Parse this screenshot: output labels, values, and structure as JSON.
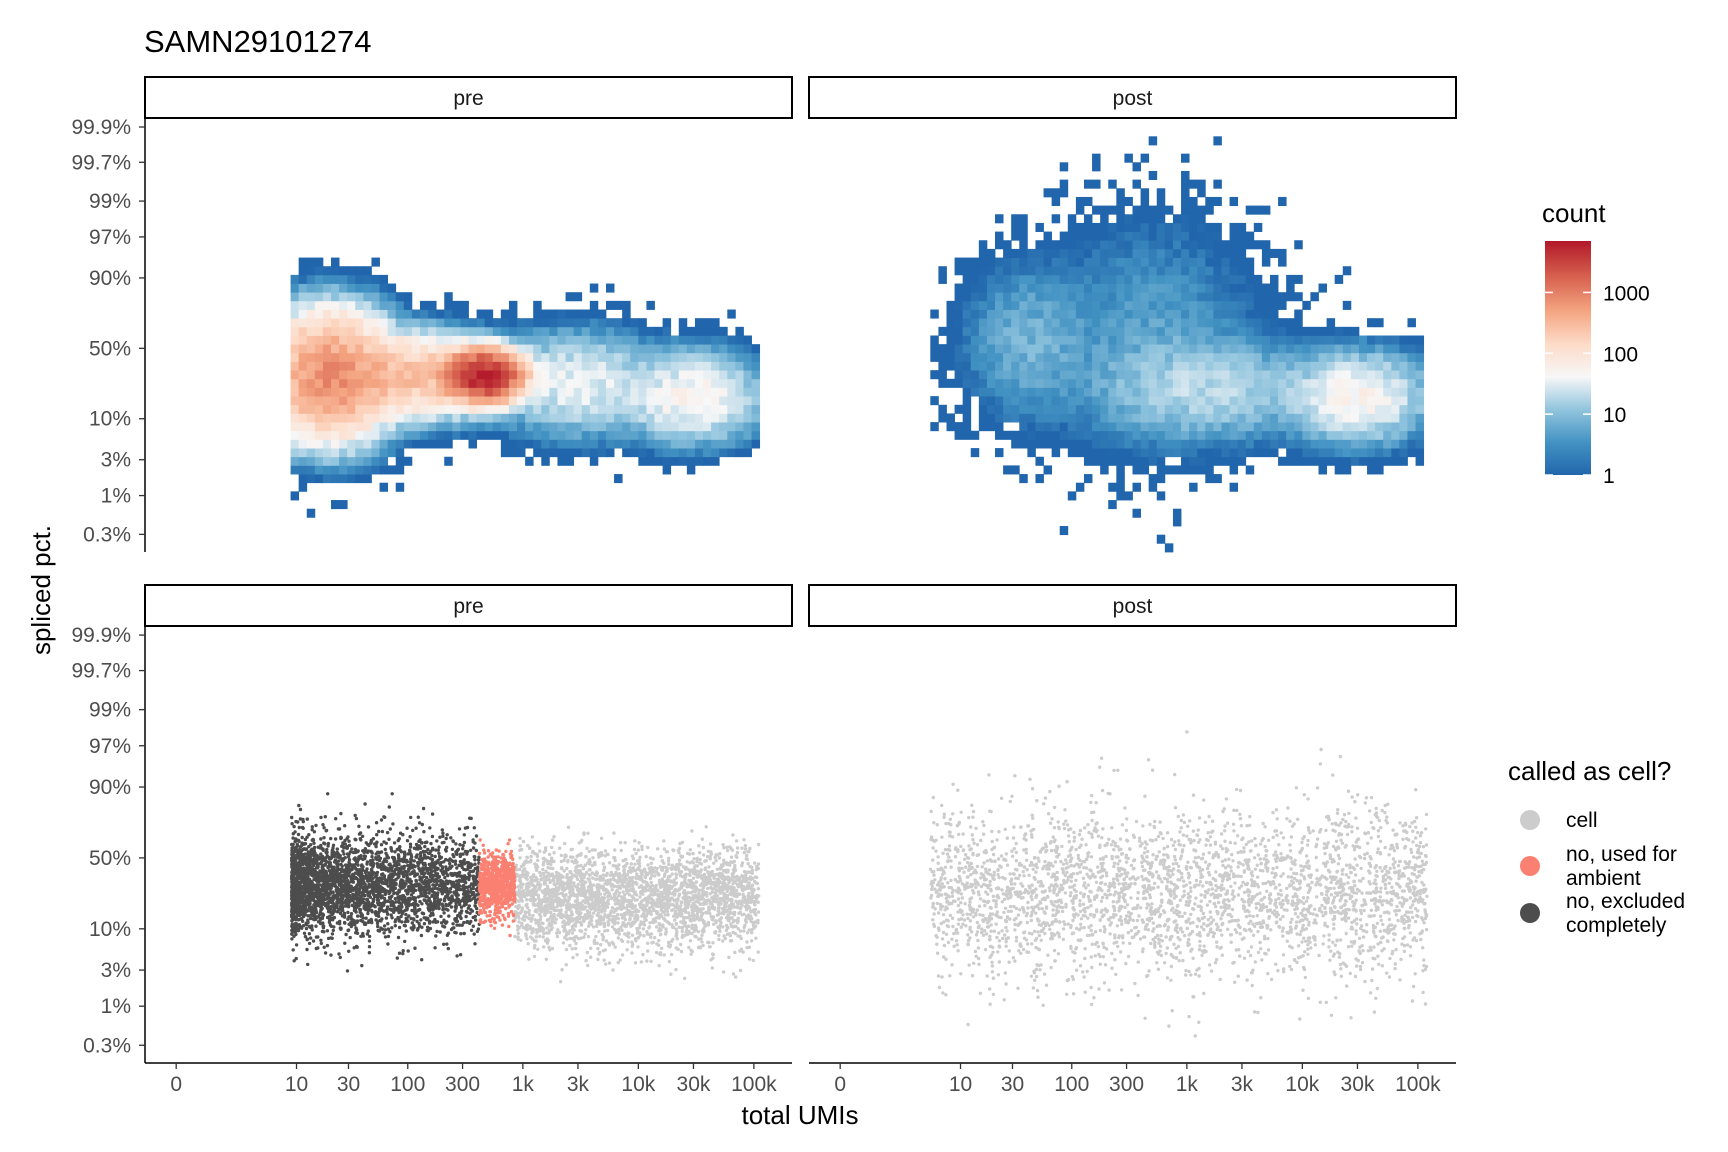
{
  "title": "SAMN29101274",
  "chart_data": [
    {
      "type": "heatmap",
      "panel_row": "top",
      "facets": [
        "pre",
        "post"
      ],
      "xlabel": "total UMIs",
      "ylabel": "spliced pct.",
      "x_scale": "log1p",
      "y_scale": "logit",
      "x_ticks": [
        0,
        10,
        30,
        100,
        300,
        1000,
        3000,
        10000,
        30000,
        100000
      ],
      "x_tick_labels": [
        "0",
        "10",
        "30",
        "100",
        "300",
        "1k",
        "3k",
        "10k",
        "30k",
        "100k"
      ],
      "y_ticks": [
        0.003,
        0.01,
        0.03,
        0.1,
        0.5,
        0.9,
        0.97,
        0.99,
        0.997,
        0.999
      ],
      "y_tick_labels": [
        "0.3%",
        "1%",
        "3%",
        "10%",
        "50%",
        "90%",
        "97%",
        "99%",
        "99.7%",
        "99.9%"
      ],
      "fill_scale": "log",
      "colorbar": {
        "title": "count",
        "ticks": [
          1,
          10,
          100,
          1000
        ],
        "tick_labels": [
          "1",
          "10",
          "100",
          "1000"
        ],
        "max": 7000
      },
      "colors": [
        "#2166ac",
        "#4393c3",
        "#92c5de",
        "#f7f7f7",
        "#fddbc7",
        "#f4a582",
        "#d6604d",
        "#b2182b"
      ],
      "density_model": {
        "pre": [
          {
            "x_center": 20,
            "x_sd_log10": 0.25,
            "y_center_pct": 30,
            "y_sd_logit": 0.9,
            "peak_count": 800
          },
          {
            "x_center": 100,
            "x_sd_log10": 0.4,
            "y_center_pct": 30,
            "y_sd_logit": 0.6,
            "peak_count": 300
          },
          {
            "x_center": 450,
            "x_sd_log10": 0.15,
            "y_center_pct": 30,
            "y_sd_logit": 0.35,
            "peak_count": 6000
          },
          {
            "x_center": 3000,
            "x_sd_log10": 0.35,
            "y_center_pct": 25,
            "y_sd_logit": 0.8,
            "peak_count": 40
          },
          {
            "x_center": 30000,
            "x_sd_log10": 0.3,
            "y_center_pct": 18,
            "y_sd_logit": 0.7,
            "peak_count": 60
          }
        ],
        "post": [
          {
            "x_center": 40,
            "x_sd_log10": 0.3,
            "y_center_pct": 55,
            "y_sd_logit": 1.3,
            "peak_count": 8
          },
          {
            "x_center": 500,
            "x_sd_log10": 0.5,
            "y_center_pct": 60,
            "y_sd_logit": 2.0,
            "peak_count": 5
          },
          {
            "x_center": 1500,
            "x_sd_log10": 0.5,
            "y_center_pct": 22,
            "y_sd_logit": 0.8,
            "peak_count": 20
          },
          {
            "x_center": 30000,
            "x_sd_log10": 0.3,
            "y_center_pct": 18,
            "y_sd_logit": 0.7,
            "peak_count": 60
          }
        ]
      },
      "x_range": {
        "pre": [
          9,
          110000
        ],
        "post": [
          5,
          120000
        ]
      }
    },
    {
      "type": "scatter",
      "panel_row": "bottom",
      "facets": [
        "pre",
        "post"
      ],
      "xlabel": "total UMIs",
      "ylabel": "spliced pct.",
      "x_scale": "log1p",
      "y_scale": "logit",
      "x_ticks": [
        0,
        10,
        30,
        100,
        300,
        1000,
        3000,
        10000,
        30000,
        100000
      ],
      "x_tick_labels": [
        "0",
        "10",
        "30",
        "100",
        "300",
        "1k",
        "3k",
        "10k",
        "30k",
        "100k"
      ],
      "y_ticks": [
        0.003,
        0.01,
        0.03,
        0.1,
        0.5,
        0.9,
        0.97,
        0.99,
        0.997,
        0.999
      ],
      "y_tick_labels": [
        "0.3%",
        "1%",
        "3%",
        "10%",
        "50%",
        "90%",
        "97%",
        "99%",
        "99.7%",
        "99.9%"
      ],
      "legend": {
        "title": "called as cell?",
        "position": "right",
        "entries": [
          {
            "key": "cell",
            "label_lines": [
              "cell"
            ],
            "color": "#cccccc"
          },
          {
            "key": "ambient",
            "label_lines": [
              "no, used for",
              "ambient"
            ],
            "color": "#fa8072"
          },
          {
            "key": "excluded",
            "label_lines": [
              "no, excluded",
              "completely"
            ],
            "color": "#4d4d4d"
          }
        ]
      },
      "groups": {
        "pre": [
          {
            "class": "excluded",
            "x_range": [
              9,
              420
            ],
            "y_center_pct": 30,
            "y_sd_logit": 0.75
          },
          {
            "class": "ambient",
            "x_range": [
              420,
              850
            ],
            "y_center_pct": 30,
            "y_sd_logit": 0.5
          },
          {
            "class": "cell",
            "x_range": [
              850,
              110000
            ],
            "y_center_pct": 22,
            "y_sd_logit": 0.75
          }
        ],
        "post": [
          {
            "class": "cell",
            "x_range": [
              5,
              120000
            ],
            "y_center_pct": 25,
            "y_sd_logit": 1.3
          }
        ]
      }
    }
  ]
}
